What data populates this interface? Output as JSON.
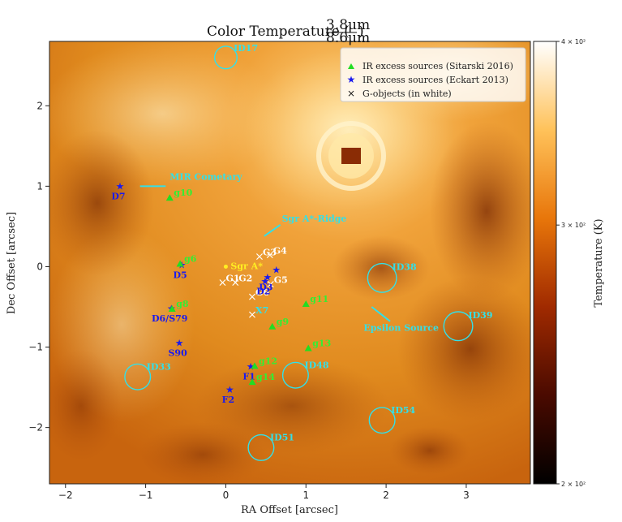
{
  "chart_data": {
    "type": "heatmap",
    "title": "Color Temperature (",
    "title_frac_num": "3.8μm",
    "title_frac_den": "8.6μm",
    "title_close": ")",
    "xlabel": "RA Offset [arcsec]",
    "ylabel": "Dec Offset [arcsec]",
    "xlim": [
      -2.2,
      3.8
    ],
    "ylim": [
      -2.7,
      2.8
    ],
    "xticks": [
      -2,
      -1,
      0,
      1,
      2,
      3
    ],
    "yticks": [
      -2,
      -1,
      0,
      1,
      2
    ],
    "colorbar": {
      "label": "Temperature (K)",
      "ticks": [
        {
          "value": 400,
          "label": "4 × 10²"
        },
        {
          "value": 300,
          "label": "3 × 10²"
        },
        {
          "value": 200,
          "label": "2 × 10²"
        }
      ],
      "range": [
        200,
        400
      ],
      "scale": "log",
      "colormap": "afmhot"
    },
    "legend": {
      "placement": "top-right",
      "entries": [
        {
          "marker": "triangle",
          "color": "#22dd22",
          "label": "IR excess sources (Sitarski 2016)"
        },
        {
          "marker": "star",
          "color": "#1a1aee",
          "label": "IR excess sources (Eckart 2013)"
        },
        {
          "marker": "x",
          "color": "#111111",
          "label": "G-objects (in white)"
        }
      ]
    },
    "sitarski_sources": [
      {
        "label": "g10",
        "x": -0.7,
        "y": 0.85
      },
      {
        "label": "g6",
        "x": -0.57,
        "y": 0.03
      },
      {
        "label": "g8",
        "x": -0.67,
        "y": -0.53
      },
      {
        "label": "g9",
        "x": 0.58,
        "y": -0.75
      },
      {
        "label": "g11",
        "x": 1.0,
        "y": -0.47
      },
      {
        "label": "g13",
        "x": 1.03,
        "y": -1.02
      },
      {
        "label": "g12",
        "x": 0.36,
        "y": -1.24
      },
      {
        "label": "g14",
        "x": 0.33,
        "y": -1.44
      }
    ],
    "eckart_sources": [
      {
        "label": "D7",
        "x": -1.32,
        "y": 1.0
      },
      {
        "label": "D5",
        "x": -0.55,
        "y": 0.02
      },
      {
        "label": "D6/S79",
        "x": -0.68,
        "y": -0.52
      },
      {
        "label": "S90",
        "x": -0.58,
        "y": -0.95
      },
      {
        "label": "D3",
        "x": 0.52,
        "y": -0.13
      },
      {
        "label": "D2",
        "x": 0.49,
        "y": -0.18
      },
      {
        "label": "F1",
        "x": 0.31,
        "y": -1.24
      },
      {
        "label": "F2",
        "x": 0.05,
        "y": -1.53
      },
      {
        "label": "",
        "x": 0.63,
        "y": -0.04
      }
    ],
    "g_objects": [
      {
        "label": "G3",
        "x": 0.42,
        "y": 0.12
      },
      {
        "label": "G4",
        "x": 0.55,
        "y": 0.14
      },
      {
        "label": "G1",
        "x": -0.04,
        "y": -0.2
      },
      {
        "label": "G2",
        "x": 0.12,
        "y": -0.2
      },
      {
        "label": "G5",
        "x": 0.56,
        "y": -0.22
      },
      {
        "label": "G6",
        "x": 0.33,
        "y": -0.38
      },
      {
        "label": "X7",
        "x": 0.33,
        "y": -0.6
      }
    ],
    "sgr_a": {
      "label": "Sgr A*",
      "x": 0.0,
      "y": 0.0
    },
    "circles": [
      {
        "label": "ID17",
        "x": 0.0,
        "y": 2.6,
        "r": 0.14
      },
      {
        "label": "ID38",
        "x": 1.95,
        "y": -0.14,
        "r": 0.18
      },
      {
        "label": "ID39",
        "x": 2.9,
        "y": -0.74,
        "r": 0.18
      },
      {
        "label": "ID33",
        "x": -1.1,
        "y": -1.37,
        "r": 0.16
      },
      {
        "label": "ID48",
        "x": 0.87,
        "y": -1.35,
        "r": 0.16
      },
      {
        "label": "ID54",
        "x": 1.95,
        "y": -1.91,
        "r": 0.16
      },
      {
        "label": "ID51",
        "x": 0.44,
        "y": -2.25,
        "r": 0.16
      }
    ],
    "annotations": [
      {
        "label": "MIR Cometary",
        "x": -0.7,
        "y": 1.08,
        "ax_from": [
          -0.75,
          1.0
        ],
        "ax_to": [
          -1.07,
          1.0
        ]
      },
      {
        "label": "Sgr A*-Ridge",
        "x": 0.7,
        "y": 0.56,
        "ax_from": [
          0.68,
          0.52
        ],
        "ax_to": [
          0.48,
          0.38
        ]
      },
      {
        "label": "Epsilon Source",
        "x": 1.72,
        "y": -0.8,
        "ax_from": [
          2.05,
          -0.68
        ],
        "ax_to": [
          1.82,
          -0.5
        ]
      }
    ]
  }
}
